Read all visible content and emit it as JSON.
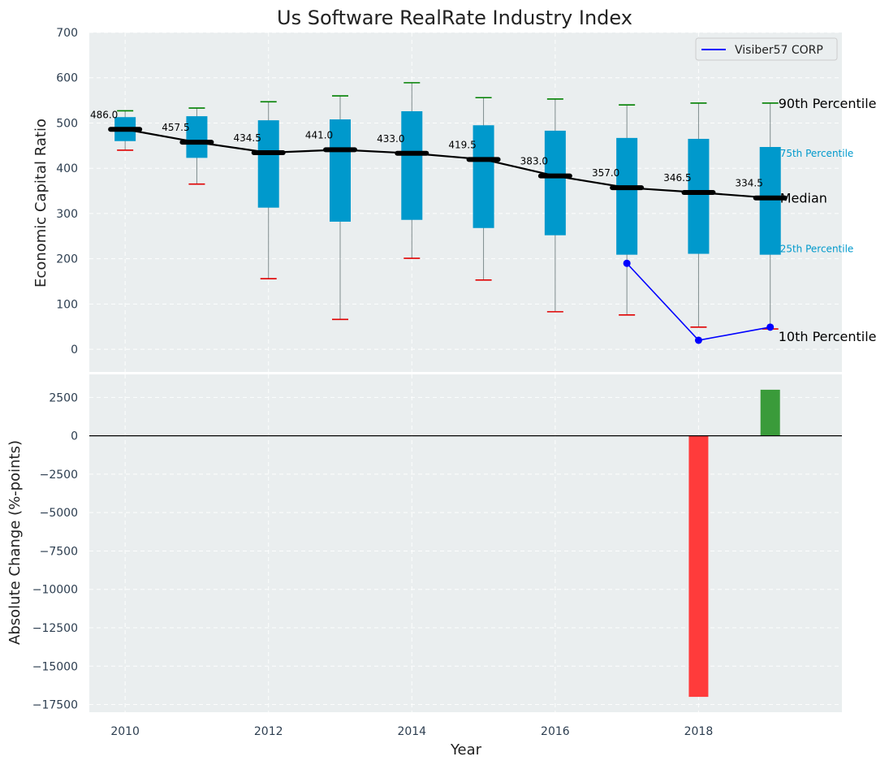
{
  "chart_data": {
    "type": "box",
    "title": "Us Software RealRate Industry Index",
    "xlabel": "Year",
    "top_panel": {
      "ylabel": "Economic Capital Ratio",
      "ylim": [
        -50,
        700
      ],
      "yticks": [
        0,
        100,
        200,
        300,
        400,
        500,
        600,
        700
      ],
      "years": [
        2010,
        2011,
        2012,
        2013,
        2014,
        2015,
        2016,
        2017,
        2018,
        2019
      ],
      "p10": [
        440,
        365,
        156,
        66,
        201,
        153,
        83,
        76,
        49,
        45
      ],
      "p25": [
        460,
        423,
        313,
        282,
        286,
        268,
        252,
        209,
        211,
        209
      ],
      "median": [
        486.0,
        457.5,
        434.5,
        441.0,
        433.0,
        419.5,
        383.0,
        357.0,
        346.5,
        334.5
      ],
      "median_labels": [
        "486.0",
        "457.5",
        "434.5",
        "441.0",
        "433.0",
        "419.5",
        "383.0",
        "357.0",
        "346.5",
        "334.5"
      ],
      "p75": [
        513,
        515,
        506,
        508,
        526,
        495,
        483,
        467,
        465,
        447
      ],
      "p90": [
        527,
        533,
        547,
        560,
        589,
        556,
        553,
        540,
        544,
        544
      ],
      "company": {
        "name": "Visiber57 CORP",
        "years": [
          2017,
          2018,
          2019
        ],
        "values": [
          190,
          20,
          49
        ]
      },
      "annotations": {
        "p90": "90th Percentile",
        "p75": "75th Percentile",
        "median": "Median",
        "p25": "25th Percentile",
        "p10": "10th Percentile"
      },
      "legend_position": "top-right"
    },
    "bottom_panel": {
      "ylabel": "Absolute Change (%-points)",
      "ylim": [
        -18000,
        4000
      ],
      "yticks": [
        2500,
        0,
        -2500,
        -5000,
        -7500,
        -10000,
        -12500,
        -15000,
        -17500
      ],
      "ytick_labels": [
        "2500",
        "0",
        "−2500",
        "−5000",
        "−7500",
        "−10000",
        "−12500",
        "−15000",
        "−17500"
      ],
      "bars": [
        {
          "year": 2018,
          "value": -17000
        },
        {
          "year": 2019,
          "value": 3000
        }
      ]
    },
    "xticks": [
      2010,
      2012,
      2014,
      2016,
      2018
    ],
    "xlim": [
      2009.5,
      2020
    ]
  },
  "colors": {
    "background": "#eaeeef",
    "box": "#0099cc",
    "whisker_top": "#008000",
    "whisker_bottom": "#e00000",
    "median_line": "#000000",
    "company_line": "#0000ff",
    "pos_bar": "#3a9b3a",
    "neg_bar": "#ff3b3b",
    "annotation_p": "#0099cc"
  }
}
